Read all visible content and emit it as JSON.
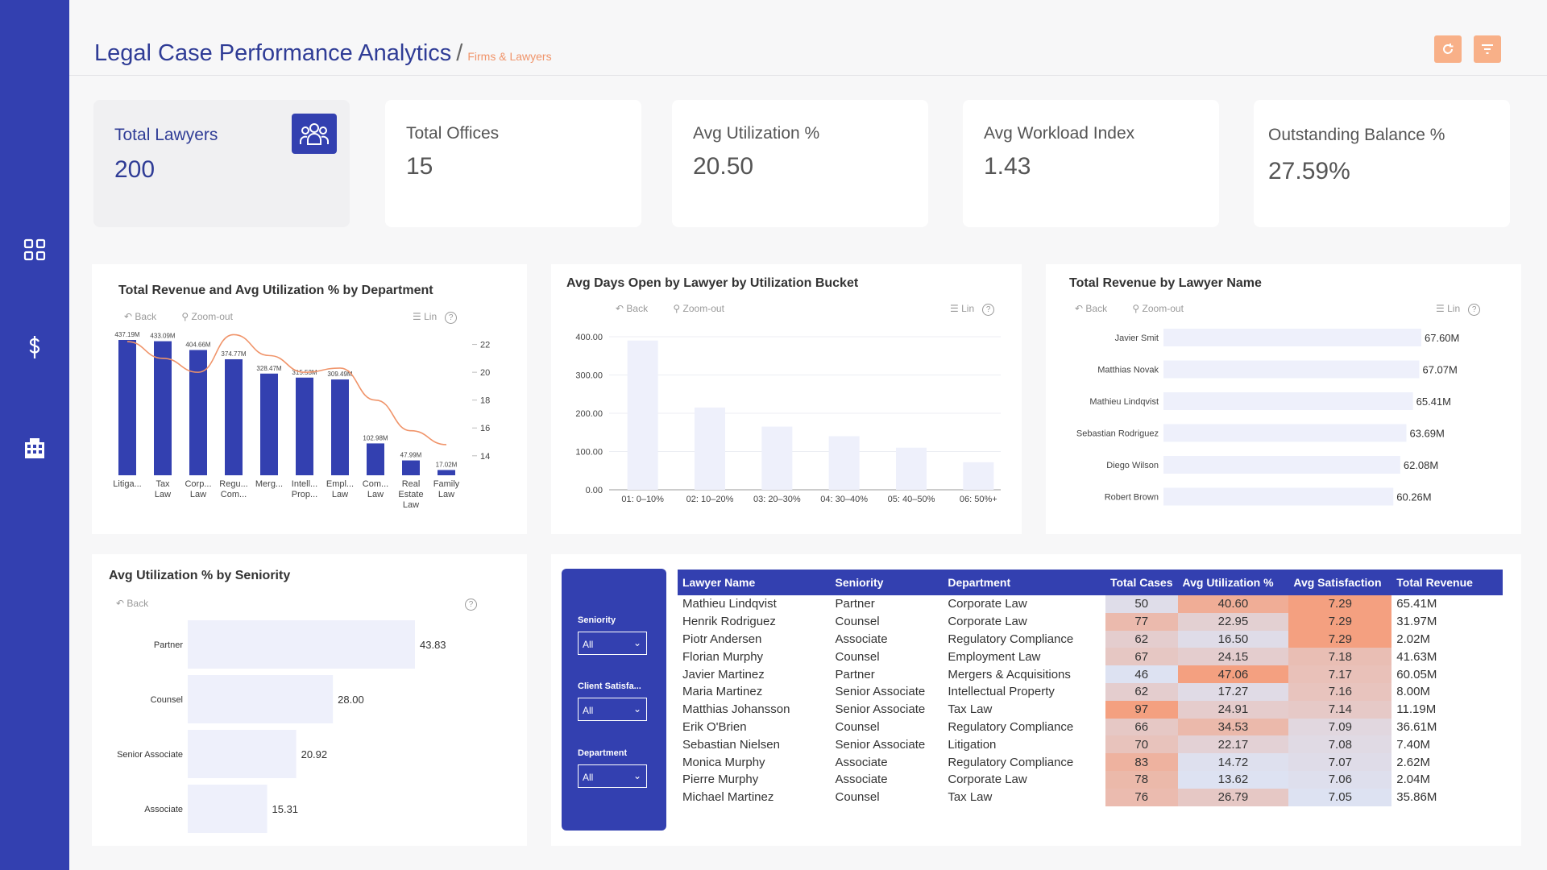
{
  "header": {
    "title": "Legal Case Performance Analytics",
    "separator": "/",
    "breadcrumb": "Firms & Lawyers"
  },
  "sidebar": {
    "items": [
      {
        "icon": "grid-icon"
      },
      {
        "icon": "dollar-icon"
      },
      {
        "icon": "building-icon"
      }
    ]
  },
  "kpis": [
    {
      "label": "Total Lawyers",
      "value": "200"
    },
    {
      "label": "Total Offices",
      "value": "15"
    },
    {
      "label": "Avg Utilization %",
      "value": "20.50"
    },
    {
      "label": "Avg Workload Index",
      "value": "1.43"
    },
    {
      "label": "Outstanding Balance %",
      "value": "27.59%"
    }
  ],
  "toolbar": {
    "back": "Back",
    "zoom_out": "Zoom-out",
    "lin": "Lin",
    "help": "?"
  },
  "colors": {
    "accent": "#3340b0",
    "line": "#f0946a",
    "bar_light": "#eef0fb",
    "title": "#2f3c96"
  },
  "chart_data": [
    {
      "type": "bar",
      "title": "Total Revenue and Avg Utilization % by Department",
      "categories": [
        "Litiga...",
        "Tax Law",
        "Corp... Law",
        "Regu... Com...",
        "Merg...",
        "Intell... Prop...",
        "Empl... Law",
        "Com... Law",
        "Real Estate Law",
        "Family Law"
      ],
      "category_lines": [
        [
          "Litiga..."
        ],
        [
          "Tax",
          "Law"
        ],
        [
          "Corp...",
          "Law"
        ],
        [
          "Regu...",
          "Com..."
        ],
        [
          "Merg..."
        ],
        [
          "Intell...",
          "Prop..."
        ],
        [
          "Empl...",
          "Law"
        ],
        [
          "Com...",
          "Law"
        ],
        [
          "Real",
          "Estate",
          "Law"
        ],
        [
          "Family",
          "Law"
        ]
      ],
      "series": [
        {
          "name": "Total Revenue",
          "type": "bar",
          "values": [
            437.19,
            433.09,
            404.66,
            374.77,
            328.47,
            315.53,
            309.49,
            102.98,
            47.99,
            17.02
          ],
          "labels": [
            "437.19M",
            "433.09M",
            "404.66M",
            "374.77M",
            "328.47M",
            "315.53M",
            "309.49M",
            "102.98M",
            "47.99M",
            "17.02M"
          ]
        },
        {
          "name": "Avg Utilization %",
          "type": "line",
          "values": [
            22.2,
            21.0,
            20.0,
            22.7,
            21.2,
            20.0,
            20.3,
            18.0,
            15.8,
            14.8
          ]
        }
      ],
      "y2_ticks": [
        "22",
        "20",
        "18",
        "16",
        "14"
      ],
      "y2lim": [
        12.6,
        22.9
      ]
    },
    {
      "type": "bar",
      "title": "Avg Days Open by Lawyer by Utilization Bucket",
      "categories": [
        "01: 0–10%",
        "02: 10–20%",
        "03: 20–30%",
        "04: 30–40%",
        "05: 40–50%",
        "06: 50%+"
      ],
      "values": [
        390,
        215,
        165,
        140,
        110,
        72
      ],
      "y_ticks": [
        "400.00",
        "300.00",
        "200.00",
        "100.00",
        "0.00"
      ],
      "ylim": [
        0,
        400
      ]
    },
    {
      "type": "bar",
      "orientation": "horizontal",
      "title": "Total Revenue by Lawyer Name",
      "categories": [
        "Javier Smit",
        "Matthias Novak",
        "Mathieu Lindqvist",
        "Sebastian Rodriguez",
        "Diego Wilson",
        "Robert Brown"
      ],
      "values": [
        67.6,
        67.07,
        65.41,
        63.69,
        62.08,
        60.26
      ],
      "labels": [
        "67.60M",
        "67.07M",
        "65.41M",
        "63.69M",
        "62.08M",
        "60.26M"
      ]
    },
    {
      "type": "bar",
      "orientation": "horizontal",
      "title": "Avg Utilization % by Seniority",
      "categories": [
        "Partner",
        "Counsel",
        "Senior Associate",
        "Associate"
      ],
      "values": [
        43.83,
        28.0,
        20.92,
        15.31
      ],
      "labels": [
        "43.83",
        "28.00",
        "20.92",
        "15.31"
      ]
    }
  ],
  "slicers": [
    {
      "label": "Seniority",
      "value": "All"
    },
    {
      "label": "Client Satisfa...",
      "value": "All"
    },
    {
      "label": "Department",
      "value": "All"
    }
  ],
  "table": {
    "columns": [
      "Lawyer Name",
      "Seniority",
      "Department",
      "Total Cases",
      "Avg Utilization %",
      "Avg Satisfaction",
      "Total Revenue"
    ],
    "rows": [
      [
        "Mathieu Lindqvist",
        "Partner",
        "Corporate Law",
        "50",
        "40.60",
        "7.29",
        "65.41M"
      ],
      [
        "Henrik Rodriguez",
        "Counsel",
        "Corporate Law",
        "77",
        "22.95",
        "7.29",
        "31.97M"
      ],
      [
        "Piotr Andersen",
        "Associate",
        "Regulatory Compliance",
        "62",
        "16.50",
        "7.29",
        "2.02M"
      ],
      [
        "Florian Murphy",
        "Counsel",
        "Employment Law",
        "67",
        "24.15",
        "7.18",
        "41.63M"
      ],
      [
        "Javier Martinez",
        "Partner",
        "Mergers & Acquisitions",
        "46",
        "47.06",
        "7.17",
        "60.05M"
      ],
      [
        "Maria Martinez",
        "Senior Associate",
        "Intellectual Property",
        "62",
        "17.27",
        "7.16",
        "8.00M"
      ],
      [
        "Matthias Johansson",
        "Senior Associate",
        "Tax Law",
        "97",
        "24.91",
        "7.14",
        "11.19M"
      ],
      [
        "Erik O'Brien",
        "Counsel",
        "Regulatory Compliance",
        "66",
        "34.53",
        "7.09",
        "36.61M"
      ],
      [
        "Sebastian Nielsen",
        "Senior Associate",
        "Litigation",
        "70",
        "22.17",
        "7.08",
        "7.40M"
      ],
      [
        "Monica Murphy",
        "Associate",
        "Regulatory Compliance",
        "83",
        "14.72",
        "7.07",
        "2.62M"
      ],
      [
        "Pierre Murphy",
        "Associate",
        "Corporate Law",
        "78",
        "13.62",
        "7.06",
        "2.04M"
      ],
      [
        "Michael Martinez",
        "Counsel",
        "Tax Law",
        "76",
        "26.79",
        "7.05",
        "35.86M"
      ]
    ]
  }
}
